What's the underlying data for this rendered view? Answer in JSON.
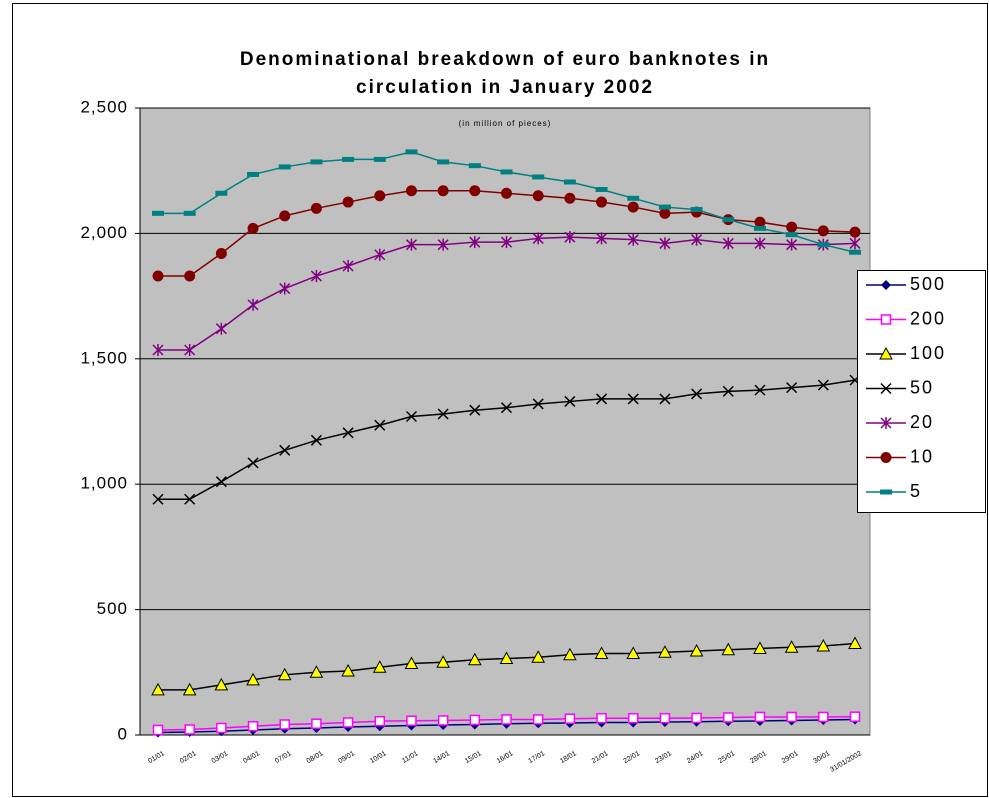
{
  "chart_data": {
    "type": "line",
    "title": "Denominational breakdown of euro banknotes in circulation in January 2002",
    "subtitle": "(in million of pieces)",
    "categories": [
      "01/01",
      "02/01",
      "03/01",
      "04/01",
      "07/01",
      "08/01",
      "09/01",
      "10/01",
      "11/01",
      "14/01",
      "15/01",
      "16/01",
      "17/01",
      "18/01",
      "21/01",
      "22/01",
      "23/01",
      "24/01",
      "25/01",
      "28/01",
      "29/01",
      "30/01",
      "31/01/2002"
    ],
    "ylim": [
      0,
      2500
    ],
    "yticks": [
      0,
      500,
      {
        "value": 1000,
        "label": "1,000"
      },
      {
        "value": 1500,
        "label": "1,500"
      },
      {
        "value": 2000,
        "label": "2,000"
      },
      {
        "value": 2500,
        "label": "2,500"
      }
    ],
    "grid": true,
    "legend": "right",
    "series": [
      {
        "name": "500",
        "color": "#000080",
        "marker": "diamond",
        "values": [
          10,
          12,
          15,
          20,
          25,
          28,
          32,
          35,
          38,
          40,
          42,
          45,
          47,
          48,
          50,
          50,
          52,
          53,
          55,
          56,
          58,
          60,
          62
        ]
      },
      {
        "name": "200",
        "color": "#ff00ff",
        "marker": "square",
        "values": [
          20,
          22,
          28,
          35,
          42,
          45,
          50,
          55,
          57,
          58,
          60,
          62,
          62,
          65,
          67,
          67,
          67,
          68,
          70,
          72,
          72,
          72,
          73
        ]
      },
      {
        "name": "100",
        "color": "#000000",
        "marker": "triangle",
        "values": [
          180,
          180,
          200,
          220,
          240,
          250,
          255,
          270,
          285,
          290,
          300,
          305,
          310,
          320,
          325,
          325,
          330,
          335,
          340,
          345,
          350,
          355,
          365
        ]
      },
      {
        "name": "50",
        "color": "#000000",
        "marker": "x",
        "values": [
          940,
          940,
          1010,
          1085,
          1135,
          1175,
          1205,
          1235,
          1270,
          1280,
          1295,
          1305,
          1320,
          1330,
          1340,
          1340,
          1340,
          1360,
          1370,
          1375,
          1385,
          1395,
          1415
        ]
      },
      {
        "name": "20",
        "color": "#800080",
        "marker": "star",
        "values": [
          1535,
          1535,
          1620,
          1715,
          1780,
          1830,
          1870,
          1915,
          1955,
          1955,
          1965,
          1965,
          1980,
          1985,
          1980,
          1975,
          1960,
          1975,
          1960,
          1960,
          1955,
          1955,
          1960
        ]
      },
      {
        "name": "10",
        "color": "#800000",
        "marker": "circle",
        "values": [
          1830,
          1830,
          1920,
          2020,
          2070,
          2100,
          2125,
          2150,
          2170,
          2170,
          2170,
          2160,
          2150,
          2140,
          2125,
          2105,
          2080,
          2085,
          2055,
          2045,
          2025,
          2010,
          2005
        ]
      },
      {
        "name": "5",
        "color": "#008080",
        "marker": "dash",
        "values": [
          2080,
          2080,
          2160,
          2235,
          2265,
          2285,
          2295,
          2295,
          2325,
          2285,
          2270,
          2245,
          2225,
          2205,
          2175,
          2140,
          2105,
          2095,
          2055,
          2020,
          1995,
          1955,
          1925
        ]
      }
    ]
  }
}
